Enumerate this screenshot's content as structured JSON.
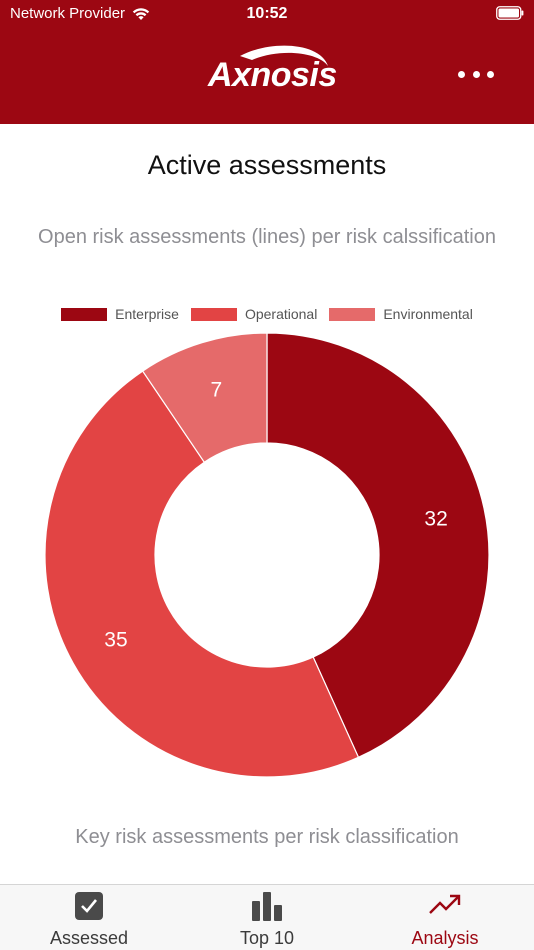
{
  "status_bar": {
    "carrier": "Network Provider",
    "time": "10:52",
    "wifi_icon": "wifi-icon",
    "battery_icon": "battery-icon"
  },
  "header": {
    "logo_text": "Axnosis",
    "more_icon": "more-horizontal-icon",
    "background_color": "#9c0712"
  },
  "page": {
    "title": "Active assessments",
    "chart_subtitle": "Open risk assessments (lines) per risk calssification",
    "section_subtitle": "Key risk assessments per risk classification"
  },
  "chart_data": {
    "type": "pie",
    "donut": true,
    "categories": [
      "Enterprise",
      "Operational",
      "Environmental"
    ],
    "values": [
      32,
      35,
      7
    ],
    "colors": [
      "#9c0712",
      "#e24444",
      "#e56a6a"
    ],
    "legend_position": "top"
  },
  "tab_bar": {
    "active_color": "#9c0712",
    "tabs": [
      {
        "label": "Assessed",
        "icon": "checkbox-checked-icon",
        "active": false
      },
      {
        "label": "Top 10",
        "icon": "bar-chart-icon",
        "active": false
      },
      {
        "label": "Analysis",
        "icon": "trending-up-icon",
        "active": true
      }
    ]
  }
}
